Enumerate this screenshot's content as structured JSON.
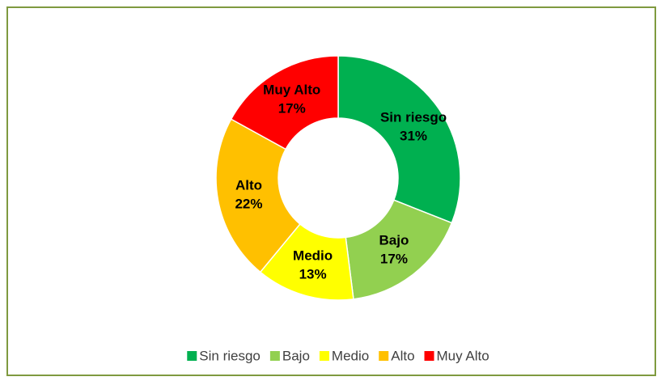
{
  "chart_data": {
    "type": "donut",
    "categories": [
      "Sin riesgo",
      "Bajo",
      "Medio",
      "Alto",
      "Muy Alto"
    ],
    "values": [
      31,
      17,
      13,
      22,
      17
    ],
    "value_labels": [
      "31%",
      "17%",
      "13%",
      "22%",
      "17%"
    ],
    "colors": [
      "#00b050",
      "#92d050",
      "#ffff00",
      "#ffc000",
      "#ff0000"
    ],
    "legend": "bottom"
  }
}
